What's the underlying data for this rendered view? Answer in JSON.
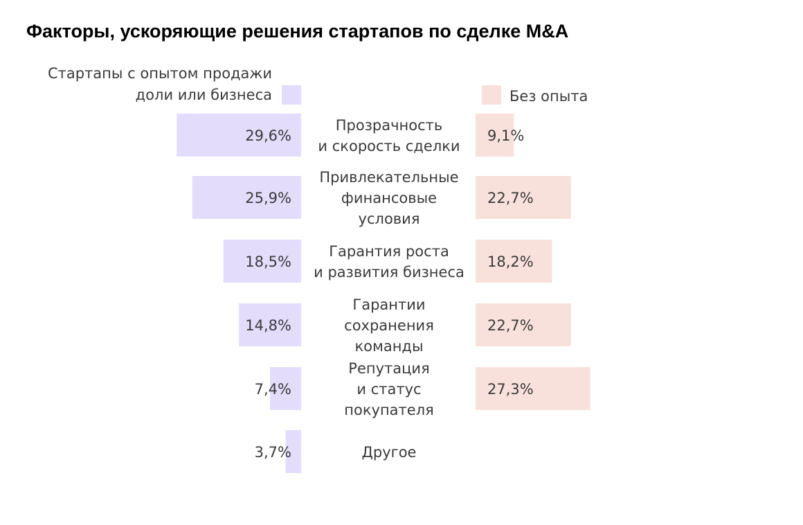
{
  "title": "Факторы, ускоряющие решения стартапов по сделке M&A",
  "chart_data": {
    "type": "bar",
    "layout": "butterfly",
    "colors": {
      "left": "#e3dcfb",
      "right": "#f8e1db",
      "text": "#3a3a3a"
    },
    "categories": [
      "Прозрачность\nи скорость сделки",
      "Привлекательные\nфинансовые\nусловия",
      "Гарантия роста\nи развития бизнеса",
      "Гарантии\nсохранения\nкоманды",
      "Репутация\nи статус\nпокупателя",
      "Другое"
    ],
    "series": [
      {
        "name": "Стартапы с опытом продажи доли или бизнеса",
        "side": "left",
        "values": [
          29.6,
          25.9,
          18.5,
          14.8,
          7.4,
          3.7
        ],
        "labels": [
          "29,6%",
          "25,9%",
          "18,5%",
          "14,8%",
          "7,4%",
          "3,7%"
        ]
      },
      {
        "name": "Без опыта",
        "side": "right",
        "values": [
          9.1,
          22.7,
          18.2,
          22.7,
          27.3,
          null
        ],
        "labels": [
          "9,1%",
          "22,7%",
          "18,2%",
          "22,7%",
          "27,3%",
          ""
        ]
      }
    ],
    "legend": {
      "left_lines": [
        "Стартапы с опытом продажи",
        "доли или бизнеса"
      ],
      "right": "Без опыта"
    }
  }
}
